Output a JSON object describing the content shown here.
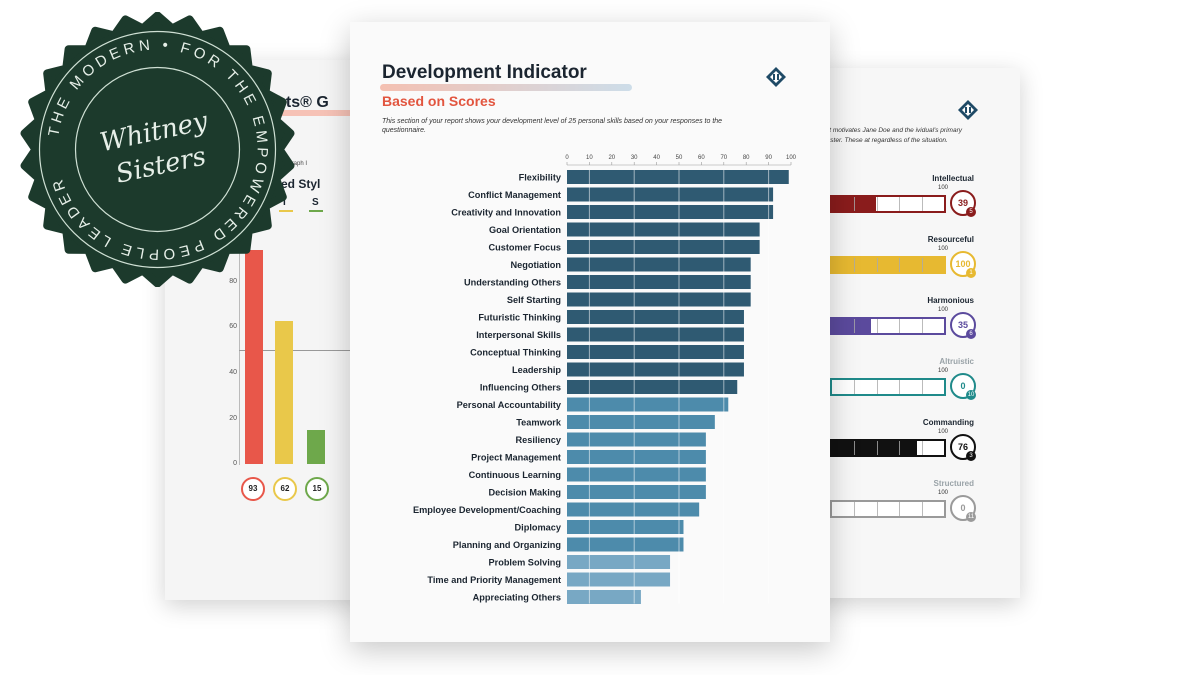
{
  "development_indicator": {
    "title": "Development Indicator",
    "subtitle": "Based on Scores",
    "description": "This section of your report shows your development level of 25 personal skills based on your responses to the questionnaire.",
    "logo_icon": "pyramid-logo-icon"
  },
  "chart_data": {
    "type": "bar",
    "orientation": "horizontal",
    "title": "Development Indicator",
    "subtitle": "Based on Scores",
    "xlim": [
      0,
      100
    ],
    "x_ticks": [
      0,
      10,
      20,
      30,
      40,
      50,
      60,
      70,
      80,
      90,
      100
    ],
    "grid": true,
    "colors": {
      "dark": "#2f5a72",
      "mid": "#4d8bab",
      "light": "#78a8c4"
    },
    "categories": [
      "Flexibility",
      "Conflict Management",
      "Creativity and Innovation",
      "Goal Orientation",
      "Customer Focus",
      "Negotiation",
      "Understanding Others",
      "Self Starting",
      "Futuristic Thinking",
      "Interpersonal Skills",
      "Conceptual Thinking",
      "Leadership",
      "Influencing Others",
      "Personal Accountability",
      "Teamwork",
      "Resiliency",
      "Project Management",
      "Continuous Learning",
      "Decision Making",
      "Employee Development/Coaching",
      "Diplomacy",
      "Planning and Organizing",
      "Problem Solving",
      "Time and Priority Management",
      "Appreciating Others"
    ],
    "values": [
      99,
      92,
      92,
      86,
      86,
      82,
      82,
      82,
      79,
      79,
      79,
      79,
      76,
      72,
      66,
      62,
      62,
      62,
      62,
      59,
      52,
      52,
      46,
      46,
      33
    ]
  },
  "left_sheet": {
    "title": "sights® G",
    "graph_label": "Graph I",
    "style_label": "ted Styl",
    "letters": [
      {
        "letter": "I",
        "color": "#e9c84a"
      },
      {
        "letter": "S",
        "color": "#6ea84b"
      }
    ],
    "y_ticks": [
      "80",
      "60",
      "40",
      "20",
      "0"
    ],
    "bars": [
      {
        "value": 93,
        "label": "93",
        "color": "#e8574a"
      },
      {
        "value": 62,
        "label": "62",
        "color": "#e9c84a"
      },
      {
        "value": 15,
        "label": "15",
        "color": "#6ea84b"
      }
    ]
  },
  "right_sheet": {
    "description": "hat motivates Jane Doe and the ividual's primary cluster. These at regardless of the situation.",
    "hundred_label": "100",
    "motivators": [
      {
        "name": "Intellectual",
        "score": "39",
        "rank": "5",
        "value": 39,
        "color": "#8a1c1c",
        "label_color": "#1b2530"
      },
      {
        "name": "Resourceful",
        "score": "100",
        "rank": "1",
        "value": 100,
        "color": "#e7b931",
        "label_color": "#1b2530"
      },
      {
        "name": "Harmonious",
        "score": "35",
        "rank": "6",
        "value": 35,
        "color": "#5b4a9d",
        "label_color": "#1b2530"
      },
      {
        "name": "Altruistic",
        "score": "0",
        "rank": "10",
        "value": 0,
        "color": "#1f8a8a",
        "label_color": "#9aa3a8"
      },
      {
        "name": "Commanding",
        "score": "76",
        "rank": "3",
        "value": 76,
        "color": "#111111",
        "label_color": "#1b2530"
      },
      {
        "name": "Structured",
        "score": "0",
        "rank": "11",
        "value": 0,
        "color": "#9a9a9a",
        "label_color": "#9aa3a8"
      }
    ]
  },
  "seal": {
    "top_text": "THE MODERN",
    "ring_text": "FOR THE EMPOWERED PEOPLE LEADER",
    "signature": "Whitney Sisters",
    "color": "#1c3a2c"
  }
}
